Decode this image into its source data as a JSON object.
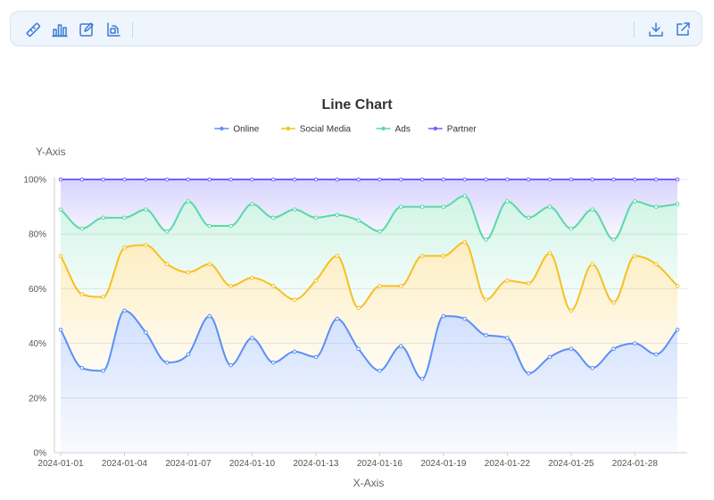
{
  "toolbar": {
    "left_tools": [
      "ruler-icon",
      "bar-chart-icon",
      "edit-icon",
      "chart-layout-icon"
    ],
    "right_tools": [
      "download-icon",
      "open-external-icon"
    ],
    "icon_color": "#3a7bd5"
  },
  "chart_data": {
    "type": "area",
    "stacked": true,
    "normalized_percent": true,
    "title": "Line Chart",
    "xlabel": "X-Axis",
    "ylabel": "Y-Axis",
    "ylim": [
      0,
      100
    ],
    "y_ticks": [
      "0%",
      "20%",
      "40%",
      "60%",
      "80%",
      "100%"
    ],
    "x": [
      "2024-01-01",
      "2024-01-02",
      "2024-01-03",
      "2024-01-04",
      "2024-01-05",
      "2024-01-06",
      "2024-01-07",
      "2024-01-08",
      "2024-01-09",
      "2024-01-10",
      "2024-01-11",
      "2024-01-12",
      "2024-01-13",
      "2024-01-14",
      "2024-01-15",
      "2024-01-16",
      "2024-01-17",
      "2024-01-18",
      "2024-01-19",
      "2024-01-20",
      "2024-01-21",
      "2024-01-22",
      "2024-01-23",
      "2024-01-24",
      "2024-01-25",
      "2024-01-26",
      "2024-01-27",
      "2024-01-28",
      "2024-01-29",
      "2024-01-30"
    ],
    "x_tick_labels": [
      "2024-01-01",
      "2024-01-04",
      "2024-01-07",
      "2024-01-10",
      "2024-01-13",
      "2024-01-16",
      "2024-01-19",
      "2024-01-22",
      "2024-01-25",
      "2024-01-28"
    ],
    "legend_position": "top-center",
    "grid": true,
    "series": [
      {
        "name": "Online",
        "color": "#5b8ff9",
        "values": [
          45,
          31,
          30,
          52,
          44,
          33,
          36,
          50,
          32,
          42,
          33,
          37,
          35,
          49,
          38,
          30,
          39,
          27,
          50,
          49,
          43,
          42,
          29,
          35,
          38,
          31,
          38,
          40,
          36,
          45
        ]
      },
      {
        "name": "Social Media",
        "color": "#f6c022",
        "values": [
          27,
          27,
          27,
          23,
          32,
          36,
          30,
          19,
          29,
          22,
          28,
          19,
          28,
          23,
          15,
          31,
          22,
          45,
          22,
          28,
          13,
          21,
          33,
          38,
          14,
          38,
          17,
          32,
          33,
          16
        ]
      },
      {
        "name": "Ads",
        "color": "#5ad8a6",
        "values": [
          17,
          24,
          29,
          11,
          13,
          12,
          26,
          14,
          22,
          27,
          25,
          33,
          23,
          15,
          32,
          20,
          29,
          18,
          18,
          17,
          22,
          29,
          24,
          17,
          30,
          20,
          23,
          20,
          21,
          30
        ]
      },
      {
        "name": "Partner",
        "color": "#7262fd",
        "values": [
          11,
          18,
          14,
          14,
          11,
          19,
          8,
          17,
          17,
          9,
          14,
          11,
          14,
          13,
          15,
          19,
          10,
          10,
          10,
          6,
          22,
          8,
          14,
          10,
          18,
          11,
          22,
          8,
          10,
          9
        ]
      }
    ]
  }
}
